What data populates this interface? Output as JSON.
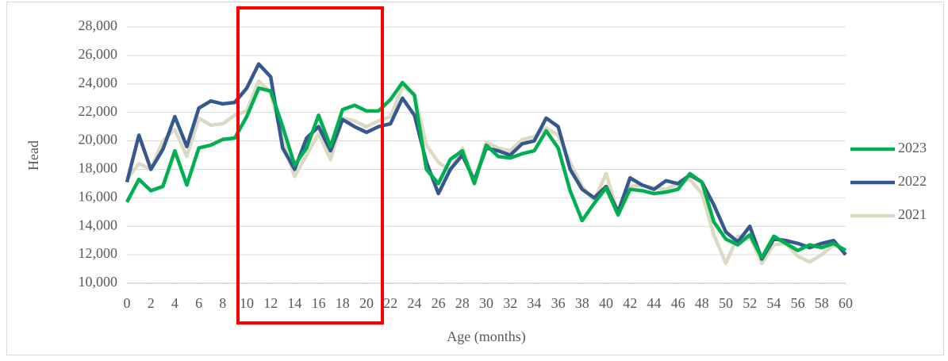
{
  "chart_data": {
    "type": "line",
    "y_label": "Head",
    "x_label": "Age (months)",
    "x": [
      0,
      1,
      2,
      3,
      4,
      5,
      6,
      7,
      8,
      9,
      10,
      11,
      12,
      13,
      14,
      15,
      16,
      17,
      18,
      19,
      20,
      21,
      22,
      23,
      24,
      25,
      26,
      27,
      28,
      29,
      30,
      31,
      32,
      33,
      34,
      35,
      36,
      37,
      38,
      39,
      40,
      41,
      42,
      43,
      44,
      45,
      46,
      47,
      48,
      49,
      50,
      51,
      52,
      53,
      54,
      55,
      56,
      57,
      58,
      59,
      60
    ],
    "xlim": [
      0,
      60
    ],
    "xticks": [
      0,
      2,
      4,
      6,
      8,
      10,
      12,
      14,
      16,
      18,
      20,
      22,
      24,
      26,
      28,
      30,
      32,
      34,
      36,
      38,
      40,
      42,
      44,
      46,
      48,
      50,
      52,
      54,
      56,
      58,
      60
    ],
    "ylim": [
      10000,
      28000
    ],
    "yticks": [
      {
        "value": 10000,
        "label": "10,000"
      },
      {
        "value": 12000,
        "label": "12,000"
      },
      {
        "value": 14000,
        "label": "14,000"
      },
      {
        "value": 16000,
        "label": "16,000"
      },
      {
        "value": 18000,
        "label": "18,000"
      },
      {
        "value": 20000,
        "label": "20,000"
      },
      {
        "value": 22000,
        "label": "22,000"
      },
      {
        "value": 24000,
        "label": "24,000"
      },
      {
        "value": 26000,
        "label": "26,000"
      },
      {
        "value": 28000,
        "label": "28,000"
      }
    ],
    "grid": true,
    "legend": "right",
    "series": [
      {
        "name": "2023",
        "color": "#00b050",
        "values": [
          15700,
          17300,
          16500,
          16800,
          19300,
          16900,
          19500,
          19700,
          20100,
          20200,
          21700,
          23700,
          23500,
          21000,
          18300,
          19500,
          21800,
          19600,
          22200,
          22500,
          22100,
          22100,
          22900,
          24100,
          23200,
          18000,
          17000,
          18700,
          19300,
          17000,
          19700,
          18900,
          18800,
          19100,
          19300,
          20700,
          19500,
          16500,
          14400,
          15600,
          16700,
          14800,
          16600,
          16500,
          16300,
          16400,
          16600,
          17700,
          17100,
          14300,
          13100,
          12700,
          13400,
          11800,
          13300,
          12800,
          12300,
          12700,
          12500,
          12800,
          12300
        ]
      },
      {
        "name": "2022",
        "color": "#35598f",
        "values": [
          17100,
          20400,
          18000,
          19400,
          21700,
          19600,
          22300,
          22800,
          22600,
          22700,
          23700,
          25400,
          24500,
          19500,
          18000,
          20200,
          21000,
          19300,
          21500,
          21000,
          20600,
          21000,
          21200,
          23000,
          21800,
          18500,
          16300,
          18000,
          19000,
          17200,
          19500,
          19300,
          19000,
          19800,
          20000,
          21600,
          21000,
          18000,
          16600,
          16000,
          16800,
          15000,
          17400,
          16900,
          16600,
          17200,
          17000,
          17600,
          17100,
          15500,
          13600,
          12900,
          14000,
          11700,
          13100,
          13000,
          12800,
          12500,
          12800,
          13000,
          12000
        ]
      },
      {
        "name": "2021",
        "color": "#ddd9c3",
        "values": [
          17300,
          18400,
          18000,
          20000,
          20800,
          18900,
          21600,
          21100,
          21200,
          21800,
          22100,
          24200,
          23400,
          20000,
          17500,
          19000,
          20500,
          18700,
          21600,
          21400,
          21000,
          21400,
          21700,
          23800,
          23300,
          19700,
          18500,
          17900,
          19500,
          17200,
          19900,
          19500,
          19300,
          20100,
          20300,
          20900,
          20400,
          18500,
          16800,
          15800,
          17700,
          14900,
          16800,
          16900,
          16700,
          16600,
          17000,
          17300,
          16300,
          13400,
          11400,
          13300,
          13300,
          11400,
          12700,
          12800,
          11900,
          11500,
          12000,
          12700,
          12300
        ]
      }
    ]
  }
}
